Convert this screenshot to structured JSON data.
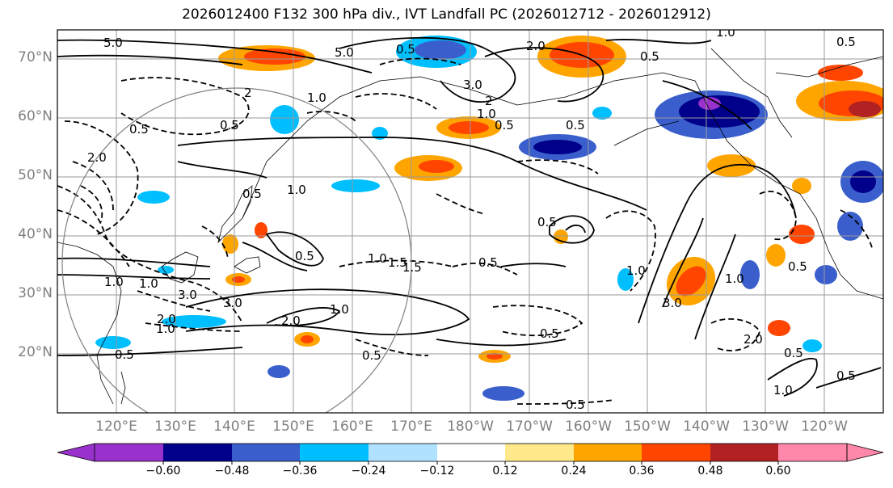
{
  "title": "2026012400 F132 300 hPa div., IVT Landfall PC (2026012712 - 2026012912)",
  "lat_labels": [
    "70°N",
    "60°N",
    "50°N",
    "40°N",
    "30°N",
    "20°N"
  ],
  "lon_labels": [
    "120°E",
    "130°E",
    "140°E",
    "150°E",
    "160°E",
    "170°E",
    "180°W",
    "170°W",
    "160°W",
    "150°W",
    "140°W",
    "130°W",
    "120°W"
  ],
  "colorbar": {
    "ticks": [
      "−0.60",
      "−0.48",
      "−0.36",
      "−0.24",
      "−0.12",
      "0.12",
      "0.24",
      "0.36",
      "0.48",
      "0.60"
    ],
    "colors": [
      "#9932cc",
      "#00008b",
      "#3a5fcd",
      "#00bfff",
      "#b0e2ff",
      "#ffffff",
      "#ffe98a",
      "#ffa500",
      "#ff4500",
      "#b22222",
      "#ff88aa"
    ]
  },
  "contour_labels": [
    "5.0",
    "5.0",
    "0.5",
    "2",
    "1.0",
    "3.0",
    "2",
    "2.0",
    "0.5",
    "1.0",
    "0.5",
    "0.5",
    "1.0",
    "0.5",
    "0.5",
    "0.5",
    "1.5",
    "1.0",
    "0.5",
    "2.0",
    "1.0",
    "0.5",
    "1.0",
    "3.0",
    "2.0",
    "3.0",
    "2.0",
    "1.0",
    "3.0",
    "0.5",
    "1.0",
    "1.0",
    "2.0",
    "1.0",
    "0.5",
    "0.5",
    "0.5",
    "1.0",
    "0.5",
    "1.5",
    "0.5",
    "0.5",
    "0.5",
    "1.0",
    "0.5"
  ]
}
